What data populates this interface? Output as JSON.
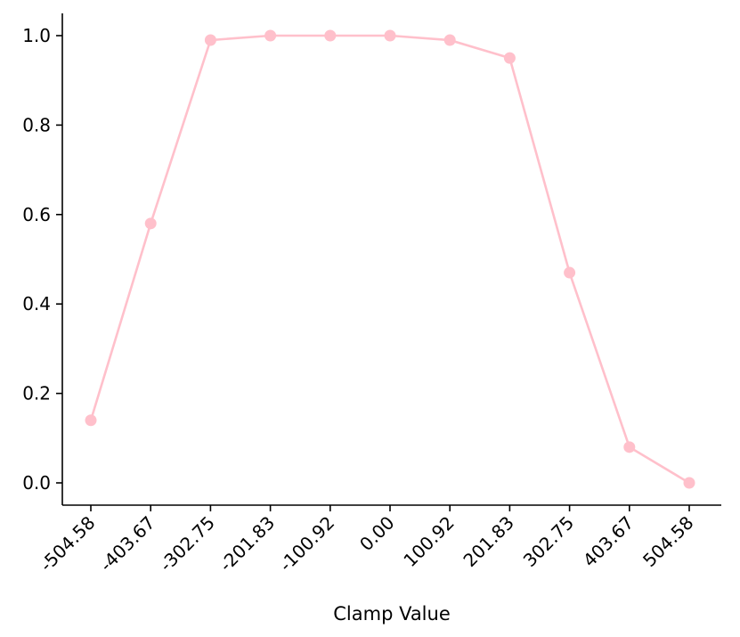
{
  "chart_data": {
    "type": "line",
    "title": "",
    "xlabel": "Clamp Value",
    "ylabel": "",
    "categories": [
      "-504.58",
      "-403.67",
      "-302.75",
      "-201.83",
      "-100.92",
      "0.00",
      "100.92",
      "201.83",
      "302.75",
      "403.67",
      "504.58"
    ],
    "series": [
      {
        "values": [
          0.14,
          0.58,
          0.99,
          1.0,
          1.0,
          1.0,
          0.99,
          0.95,
          0.47,
          0.08,
          0.0
        ]
      }
    ],
    "yticks": [
      "0.0",
      "0.2",
      "0.4",
      "0.6",
      "0.8",
      "1.0"
    ],
    "ylim": [
      -0.05,
      1.05
    ],
    "grid": false,
    "colors": {
      "line": "#ffc0cb",
      "axis": "#000000"
    }
  }
}
